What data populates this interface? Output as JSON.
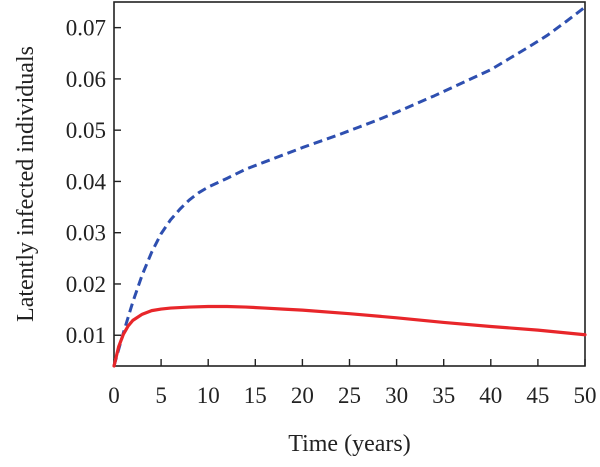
{
  "chart_data": {
    "type": "line",
    "xlabel": "Time (years)",
    "ylabel": "Latently infected individuals",
    "xlim": [
      0,
      50
    ],
    "ylim": [
      0.004,
      0.075
    ],
    "x_ticks": [
      0,
      5,
      10,
      15,
      20,
      25,
      30,
      35,
      40,
      45,
      50
    ],
    "y_ticks": [
      0.01,
      0.02,
      0.03,
      0.04,
      0.05,
      0.06,
      0.07
    ],
    "x_tick_labels": [
      "0",
      "5",
      "10",
      "15",
      "20",
      "25",
      "30",
      "35",
      "40",
      "45",
      "50"
    ],
    "y_tick_labels": [
      "0.01",
      "0.02",
      "0.03",
      "0.04",
      "0.05",
      "0.06",
      "0.07"
    ],
    "grid": false,
    "series": [
      {
        "color": "#2e4fb0",
        "style": "dashed",
        "x": [
          0,
          1,
          2,
          3,
          4,
          5,
          6,
          7,
          8,
          9,
          10,
          12,
          14,
          16,
          18,
          20,
          22,
          24,
          26,
          28,
          30,
          32,
          34,
          36,
          38,
          40,
          42,
          44,
          46,
          48,
          50
        ],
        "y": [
          0.004,
          0.0105,
          0.0165,
          0.0218,
          0.0262,
          0.0298,
          0.0325,
          0.0346,
          0.0364,
          0.0378,
          0.0389,
          0.0406,
          0.0424,
          0.0438,
          0.0452,
          0.0466,
          0.0479,
          0.0492,
          0.0506,
          0.052,
          0.0535,
          0.0551,
          0.0567,
          0.0584,
          0.0601,
          0.0618,
          0.064,
          0.0662,
          0.0685,
          0.0712,
          0.074
        ]
      },
      {
        "color": "#e8262a",
        "style": "solid",
        "x": [
          0,
          0.5,
          1,
          1.5,
          2,
          3,
          4,
          5,
          6,
          8,
          10,
          12,
          14,
          16,
          18,
          20,
          25,
          30,
          35,
          40,
          45,
          50
        ],
        "y": [
          0.004,
          0.0078,
          0.0102,
          0.0118,
          0.0129,
          0.0141,
          0.0148,
          0.0151,
          0.0153,
          0.0155,
          0.0156,
          0.0156,
          0.0155,
          0.0153,
          0.0151,
          0.0149,
          0.0142,
          0.0134,
          0.0125,
          0.0117,
          0.011,
          0.0101
        ]
      }
    ]
  }
}
